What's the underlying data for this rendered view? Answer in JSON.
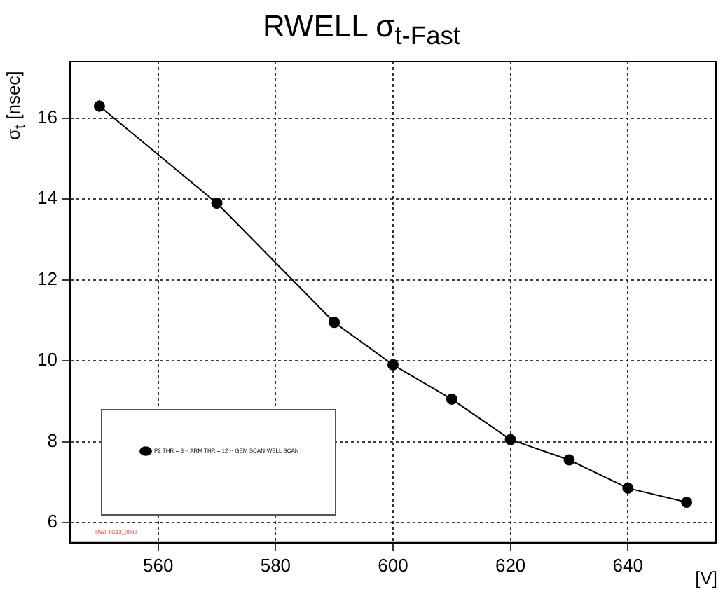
{
  "chart_data": {
    "type": "line",
    "title": "RWELL σ$_{t-Fast}$",
    "ylabel": "σ$_{t}$ [nsec]",
    "xlabel": "[V]",
    "x": [
      550,
      570,
      590,
      600,
      610,
      620,
      630,
      640,
      650
    ],
    "series": [
      {
        "name": "P2 THR = 3 -- ARM THR = 12 -- GEM SCAN-WELL SCAN",
        "color": "#000000",
        "values": [
          16.3,
          13.9,
          10.95,
          9.9,
          9.05,
          8.05,
          7.55,
          6.85,
          6.5
        ],
        "errors": [
          0.15,
          null,
          0.12,
          null,
          null,
          null,
          null,
          null,
          null
        ]
      }
    ],
    "xlim": [
      545,
      655
    ],
    "xticks": [
      560,
      580,
      600,
      620,
      640
    ],
    "ylim": [
      5.5,
      17.4
    ],
    "yticks": [
      6,
      8,
      10,
      12,
      14,
      16
    ],
    "grid": true,
    "legend": "bottom left",
    "marker": "circle",
    "line_style": "solid",
    "annotations": [
      "RWFTC13_0008"
    ]
  }
}
